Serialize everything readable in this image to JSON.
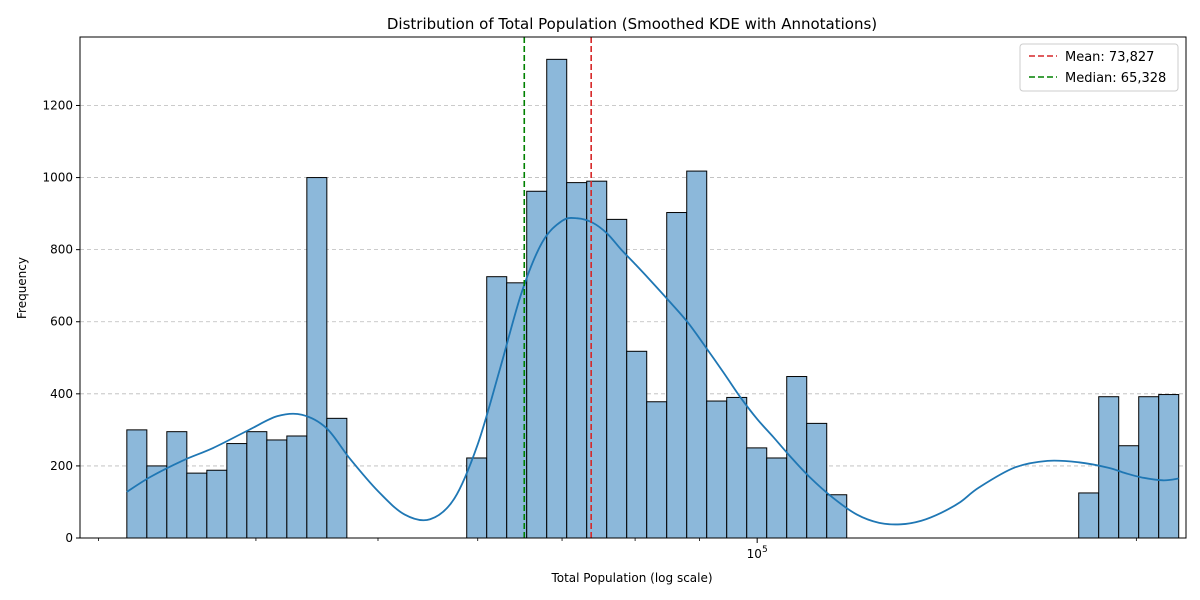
{
  "chart_data": {
    "type": "bar",
    "title": "Distribution of Total Population (Smoothed KDE with Annotations)",
    "xlabel": "Total Population (log scale)",
    "ylabel": "Frequency",
    "x_scale": "log",
    "xlim": [
      29000,
      219000
    ],
    "ylim": [
      0,
      1390
    ],
    "y_ticks": [
      0,
      200,
      400,
      600,
      800,
      1000,
      1200
    ],
    "x_major_ticks": [
      100000
    ],
    "x_major_tick_label_base": "10",
    "x_major_tick_label_exp": "5",
    "x_minor_ticks": [
      30000,
      40000,
      50000,
      60000,
      70000,
      80000,
      90000,
      200000
    ],
    "grid": "y-dashed",
    "legend_position": "top-right",
    "bin_edges": [
      31592,
      32769,
      33988,
      35254,
      36567,
      37929,
      39341,
      40806,
      42326,
      43902,
      45537,
      47233,
      58805,
      60995,
      63266,
      65622,
      68066,
      70600,
      73230,
      75956,
      78785,
      81718,
      84761,
      87918,
      91191,
      94587,
      98110,
      101763,
      105552,
      109483,
      113560,
      180000,
      186703,
      193656,
      200867,
      208347,
      216105
    ],
    "bins": [
      {
        "start": 31592,
        "end": 32769,
        "count": 300
      },
      {
        "start": 32769,
        "end": 33988,
        "count": 200
      },
      {
        "start": 33988,
        "end": 35254,
        "count": 295
      },
      {
        "start": 35254,
        "end": 36567,
        "count": 180
      },
      {
        "start": 36567,
        "end": 37929,
        "count": 188
      },
      {
        "start": 37929,
        "end": 39341,
        "count": 262
      },
      {
        "start": 39341,
        "end": 40806,
        "count": 295
      },
      {
        "start": 40806,
        "end": 42326,
        "count": 272
      },
      {
        "start": 42326,
        "end": 43902,
        "count": 283
      },
      {
        "start": 43902,
        "end": 45537,
        "count": 1000
      },
      {
        "start": 45537,
        "end": 47233,
        "count": 332
      },
      {
        "start": 58805,
        "end": 60995,
        "count": 222
      },
      {
        "start": 60995,
        "end": 63266,
        "count": 725
      },
      {
        "start": 63266,
        "end": 65622,
        "count": 708
      },
      {
        "start": 65622,
        "end": 68066,
        "count": 962
      },
      {
        "start": 68066,
        "end": 70600,
        "count": 1328
      },
      {
        "start": 70600,
        "end": 73230,
        "count": 986
      },
      {
        "start": 73230,
        "end": 75956,
        "count": 990
      },
      {
        "start": 75956,
        "end": 78785,
        "count": 884
      },
      {
        "start": 78785,
        "end": 81718,
        "count": 518
      },
      {
        "start": 81718,
        "end": 84761,
        "count": 378
      },
      {
        "start": 84761,
        "end": 87918,
        "count": 903
      },
      {
        "start": 87918,
        "end": 91191,
        "count": 1018
      },
      {
        "start": 91191,
        "end": 94587,
        "count": 380
      },
      {
        "start": 94587,
        "end": 98110,
        "count": 390
      },
      {
        "start": 98110,
        "end": 101763,
        "count": 250
      },
      {
        "start": 101763,
        "end": 105552,
        "count": 222
      },
      {
        "start": 105552,
        "end": 109483,
        "count": 448
      },
      {
        "start": 109483,
        "end": 113560,
        "count": 318
      },
      {
        "start": 113560,
        "end": 117789,
        "count": 120
      },
      {
        "start": 180000,
        "end": 186703,
        "count": 125
      },
      {
        "start": 186703,
        "end": 193656,
        "count": 392
      },
      {
        "start": 193656,
        "end": 200867,
        "count": 256
      },
      {
        "start": 200867,
        "end": 208347,
        "count": 392
      },
      {
        "start": 208347,
        "end": 216105,
        "count": 398
      }
    ],
    "kde": {
      "x": [
        31592,
        33000,
        35000,
        37000,
        39500,
        41600,
        43500,
        45500,
        47500,
        50000,
        52500,
        55000,
        57500,
        60000,
        62500,
        65000,
        67500,
        70000,
        72000,
        74000,
        76000,
        78000,
        80000,
        82000,
        85000,
        88000,
        91000,
        94000,
        97000,
        100000,
        103000,
        106000,
        110000,
        115000,
        120000,
        125000,
        130000,
        135000,
        140000,
        145000,
        150000,
        160000,
        170000,
        180000,
        190000,
        196000,
        202000,
        210000,
        216105
      ],
      "y": [
        128,
        170,
        215,
        250,
        300,
        338,
        342,
        305,
        220,
        130,
        65,
        52,
        110,
        260,
        470,
        680,
        820,
        880,
        887,
        875,
        845,
        800,
        760,
        720,
        660,
        600,
        530,
        460,
        390,
        330,
        280,
        230,
        170,
        110,
        65,
        42,
        38,
        48,
        70,
        100,
        140,
        195,
        214,
        210,
        195,
        180,
        168,
        160,
        165
      ]
    },
    "mean": 73827,
    "median": 65328,
    "mean_color": "#d62728",
    "median_color": "#008000",
    "bar_color": "#8cb8da",
    "kde_color": "#1f77b4"
  },
  "legend": {
    "mean_label": "Mean: 73,827",
    "median_label": "Median: 65,328"
  }
}
